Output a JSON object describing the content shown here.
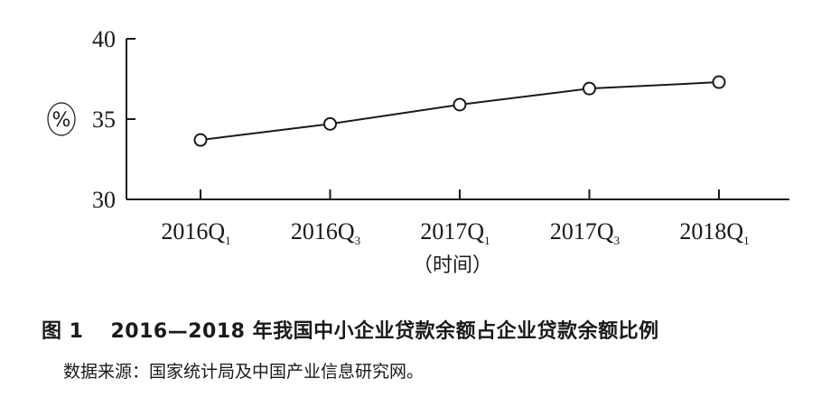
{
  "chart_data": {
    "type": "line",
    "categories": [
      {
        "main": "2016Q",
        "sub": "1"
      },
      {
        "main": "2016Q",
        "sub": "3"
      },
      {
        "main": "2017Q",
        "sub": "1"
      },
      {
        "main": "2017Q",
        "sub": "3"
      },
      {
        "main": "2018Q",
        "sub": "1"
      }
    ],
    "values": [
      33.7,
      34.7,
      35.9,
      36.9,
      37.3
    ],
    "ylim": [
      30,
      40
    ],
    "yticks": [
      30,
      35,
      40
    ],
    "ylabel": "%",
    "xlabel": "（时间）",
    "title": "",
    "grid": false,
    "colors": {
      "line": "#1a1a1a",
      "marker_fill": "#ffffff"
    }
  },
  "caption": {
    "figure_number": "图 1",
    "title": "2016—2018 年我国中小企业贷款余额占企业贷款余额比例",
    "source": "数据来源：国家统计局及中国产业信息研究网。"
  }
}
